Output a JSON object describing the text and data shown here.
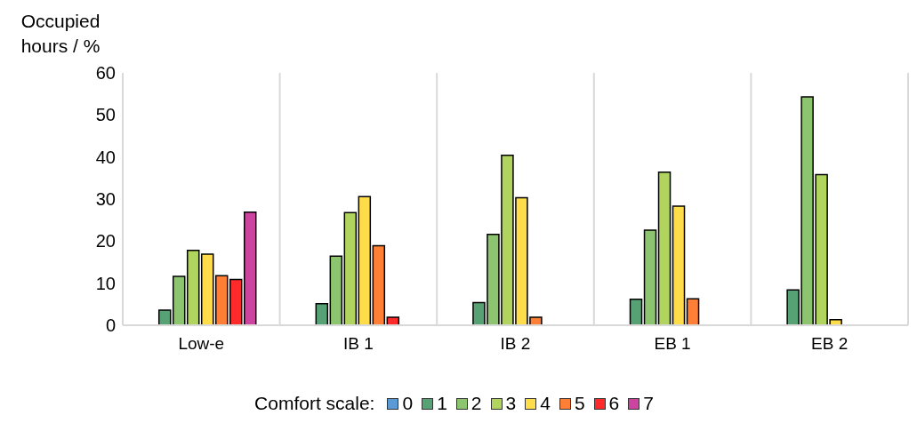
{
  "chart_data": {
    "type": "bar",
    "ylabel": "Occupied hours / %",
    "legend_title": "Comfort scale:",
    "categories": [
      "Low-e",
      "IB 1",
      "IB 2",
      "EB 1",
      "EB 2"
    ],
    "series": [
      {
        "name": "0",
        "color": "#5b9bd5",
        "values": [
          0,
          0,
          0,
          0,
          0
        ]
      },
      {
        "name": "1",
        "color": "#57a275",
        "values": [
          3.6,
          5.1,
          5.4,
          6.2,
          8.4
        ]
      },
      {
        "name": "2",
        "color": "#8cc46f",
        "values": [
          11.6,
          16.4,
          21.6,
          22.6,
          54.3
        ]
      },
      {
        "name": "3",
        "color": "#b0d45e",
        "values": [
          17.8,
          26.8,
          40.4,
          36.4,
          35.8
        ]
      },
      {
        "name": "4",
        "color": "#ffdd4a",
        "values": [
          16.9,
          30.6,
          30.3,
          28.3,
          1.3
        ]
      },
      {
        "name": "5",
        "color": "#ff7f36",
        "values": [
          11.8,
          18.9,
          1.9,
          6.3,
          0
        ]
      },
      {
        "name": "6",
        "color": "#ff2b2b",
        "values": [
          10.9,
          1.9,
          0,
          0,
          0
        ]
      },
      {
        "name": "7",
        "color": "#cc44a0",
        "values": [
          26.9,
          0,
          0,
          0,
          0
        ]
      }
    ],
    "ylim": [
      0,
      60
    ],
    "yticks": [
      0,
      10,
      20,
      30,
      40,
      50,
      60
    ],
    "grid": true,
    "legend": "bottom"
  }
}
